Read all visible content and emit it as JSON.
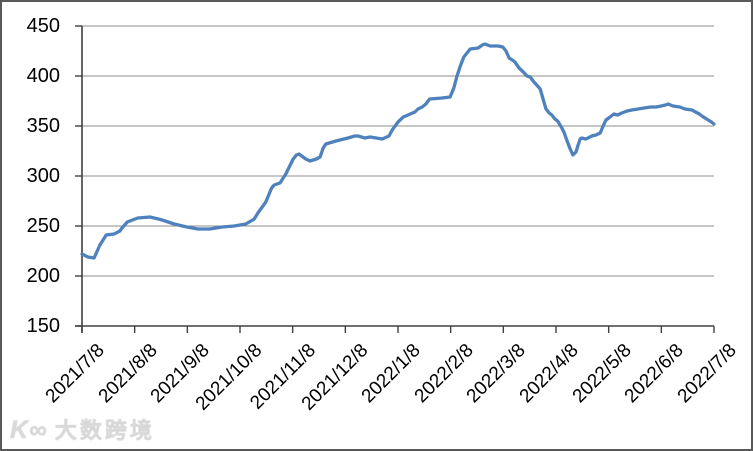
{
  "chart_data": {
    "type": "line",
    "x_tick_labels": [
      "2021/7/8",
      "2021/8/8",
      "2021/9/8",
      "2021/10/8",
      "2021/11/8",
      "2021/12/8",
      "2022/1/8",
      "2022/2/8",
      "2022/3/8",
      "2022/4/8",
      "2022/5/8",
      "2022/6/8",
      "2022/7/8"
    ],
    "y_ticks": [
      150,
      200,
      250,
      300,
      350,
      400,
      450
    ],
    "ylim": [
      150,
      450
    ],
    "xlim_months": [
      0,
      12
    ],
    "grid": true,
    "legend": "none",
    "line_color": "#4F81BD",
    "series": [
      {
        "name": "",
        "points_t_months_vs_value": [
          [
            0.0,
            222
          ],
          [
            0.11,
            219
          ],
          [
            0.23,
            218
          ],
          [
            0.34,
            231
          ],
          [
            0.46,
            241
          ],
          [
            0.61,
            242
          ],
          [
            0.72,
            245
          ],
          [
            0.76,
            248
          ],
          [
            0.86,
            254
          ],
          [
            1.06,
            258
          ],
          [
            1.29,
            259
          ],
          [
            1.45,
            257
          ],
          [
            1.52,
            256
          ],
          [
            1.75,
            252
          ],
          [
            1.99,
            249
          ],
          [
            2.2,
            247
          ],
          [
            2.43,
            247
          ],
          [
            2.66,
            249
          ],
          [
            2.89,
            250
          ],
          [
            3.11,
            252
          ],
          [
            3.27,
            257
          ],
          [
            3.34,
            263
          ],
          [
            3.49,
            274
          ],
          [
            3.6,
            288
          ],
          [
            3.65,
            291
          ],
          [
            3.76,
            293
          ],
          [
            3.87,
            302
          ],
          [
            4.01,
            317
          ],
          [
            4.07,
            321
          ],
          [
            4.12,
            322
          ],
          [
            4.25,
            317
          ],
          [
            4.33,
            315
          ],
          [
            4.45,
            317
          ],
          [
            4.52,
            319
          ],
          [
            4.58,
            328
          ],
          [
            4.63,
            332
          ],
          [
            4.82,
            335
          ],
          [
            5.05,
            338
          ],
          [
            5.18,
            340
          ],
          [
            5.24,
            340
          ],
          [
            5.37,
            338
          ],
          [
            5.47,
            339
          ],
          [
            5.7,
            337
          ],
          [
            5.83,
            340
          ],
          [
            5.89,
            346
          ],
          [
            6.0,
            354
          ],
          [
            6.1,
            359
          ],
          [
            6.19,
            361
          ],
          [
            6.32,
            364
          ],
          [
            6.38,
            367
          ],
          [
            6.46,
            369
          ],
          [
            6.53,
            372
          ],
          [
            6.6,
            377
          ],
          [
            6.84,
            378
          ],
          [
            6.99,
            379
          ],
          [
            7.06,
            388
          ],
          [
            7.12,
            400
          ],
          [
            7.19,
            411
          ],
          [
            7.25,
            419
          ],
          [
            7.37,
            427
          ],
          [
            7.52,
            428
          ],
          [
            7.6,
            431
          ],
          [
            7.65,
            432
          ],
          [
            7.75,
            430
          ],
          [
            7.9,
            430
          ],
          [
            7.99,
            429
          ],
          [
            8.05,
            425
          ],
          [
            8.11,
            418
          ],
          [
            8.17,
            416
          ],
          [
            8.22,
            414
          ],
          [
            8.3,
            408
          ],
          [
            8.38,
            404
          ],
          [
            8.45,
            400
          ],
          [
            8.51,
            399
          ],
          [
            8.58,
            394
          ],
          [
            8.65,
            390
          ],
          [
            8.7,
            387
          ],
          [
            8.75,
            378
          ],
          [
            8.81,
            367
          ],
          [
            8.87,
            363
          ],
          [
            8.92,
            361
          ],
          [
            8.98,
            357
          ],
          [
            9.03,
            355
          ],
          [
            9.1,
            349
          ],
          [
            9.15,
            344
          ],
          [
            9.21,
            335
          ],
          [
            9.27,
            327
          ],
          [
            9.32,
            321
          ],
          [
            9.38,
            324
          ],
          [
            9.42,
            331
          ],
          [
            9.46,
            337
          ],
          [
            9.49,
            338
          ],
          [
            9.56,
            337
          ],
          [
            9.61,
            338
          ],
          [
            9.68,
            340
          ],
          [
            9.76,
            341
          ],
          [
            9.84,
            343
          ],
          [
            9.88,
            348
          ],
          [
            9.92,
            353
          ],
          [
            9.95,
            356
          ],
          [
            10.0,
            358
          ],
          [
            10.05,
            360
          ],
          [
            10.1,
            362
          ],
          [
            10.17,
            361
          ],
          [
            10.25,
            363
          ],
          [
            10.35,
            365
          ],
          [
            10.44,
            366
          ],
          [
            10.56,
            367
          ],
          [
            10.67,
            368
          ],
          [
            10.8,
            369
          ],
          [
            10.9,
            369
          ],
          [
            11.0,
            370
          ],
          [
            11.08,
            371
          ],
          [
            11.13,
            372
          ],
          [
            11.22,
            370
          ],
          [
            11.35,
            369
          ],
          [
            11.45,
            367
          ],
          [
            11.58,
            366
          ],
          [
            11.65,
            364
          ],
          [
            11.72,
            362
          ],
          [
            11.77,
            360
          ],
          [
            11.83,
            358
          ],
          [
            11.89,
            356
          ],
          [
            11.95,
            354
          ],
          [
            12.0,
            352
          ]
        ]
      }
    ]
  },
  "watermark": {
    "logo": "K∞",
    "text": "大数跨境"
  },
  "colors": {
    "line": "#4F81BD",
    "gridline": "#8C8C8C",
    "axis": "#404040",
    "frame_border": "#595959",
    "background": "#FFFFFF",
    "label_text": "#000000"
  }
}
